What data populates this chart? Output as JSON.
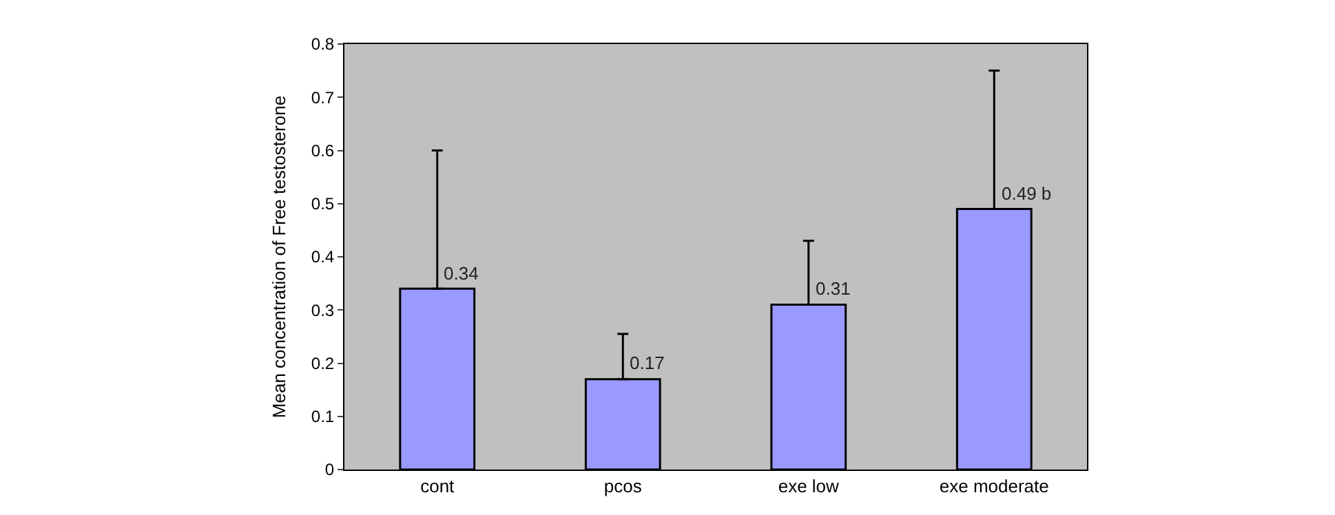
{
  "chart_data": {
    "type": "bar",
    "ylabel": "Mean concentration of Free testosterone",
    "categories": [
      "cont",
      "pcos",
      "exe low",
      "exe moderate"
    ],
    "values": [
      0.34,
      0.17,
      0.31,
      0.49
    ],
    "color": "#9999ff",
    "errors": [
      [
        0.34,
        0.6
      ],
      [
        0.17,
        0.255
      ],
      [
        0.31,
        0.43
      ],
      [
        0.49,
        0.75
      ]
    ],
    "value_labels": [
      "0.34",
      "0.17",
      "0.31",
      "0.49 b"
    ],
    "ylim": [
      0,
      0.8
    ],
    "yticks": [
      0,
      0.1,
      0.2,
      0.3,
      0.4,
      0.5,
      0.6,
      0.7,
      0.8
    ],
    "grid": false,
    "legend": false
  }
}
